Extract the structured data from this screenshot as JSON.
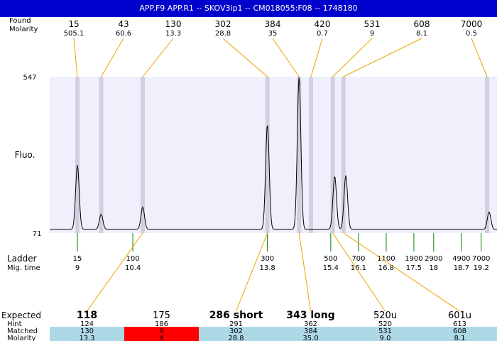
{
  "title": "APP.F9  APP.R1 -- SKOV3ip1 -- CM018055:F08 -- 1748180",
  "labels": {
    "found": "Found",
    "molarity": "Molarity",
    "fluo": "Fluo.",
    "ladder": "Ladder",
    "mig_time": "Mig. time",
    "expected": "Expected",
    "hint": "Hint",
    "matched": "Matched",
    "molarity_row": "Molarity"
  },
  "colors": {
    "title_bar": "#0000cc",
    "plot_bg": "#f0f0fc",
    "band": "#d0d0e0",
    "connector": "#f0a000",
    "ladder_tick": "#008000",
    "table_bg": "#add8e6",
    "table_missing": "#ff0000"
  },
  "chart_data": {
    "type": "line",
    "ylabel": "Fluo.",
    "ylim": [
      71,
      547
    ],
    "y_ticks": [
      71,
      547
    ],
    "xlim": [
      8.3,
      19.6
    ],
    "peaks": [
      {
        "mig_time": 9.0,
        "height": 278
      },
      {
        "mig_time": 9.6,
        "height": 128
      },
      {
        "mig_time": 10.65,
        "height": 150
      },
      {
        "mig_time": 13.8,
        "height": 402
      },
      {
        "mig_time": 14.6,
        "height": 547
      },
      {
        "mig_time": 15.5,
        "height": 244
      },
      {
        "mig_time": 15.78,
        "height": 246
      },
      {
        "mig_time": 19.4,
        "height": 135
      }
    ],
    "baseline": 82,
    "found": [
      {
        "size": "15",
        "molarity": "505.1",
        "mig_time": 9.0
      },
      {
        "size": "43",
        "molarity": "60.6",
        "mig_time": 9.6
      },
      {
        "size": "130",
        "molarity": "13.3",
        "mig_time": 10.65
      },
      {
        "size": "302",
        "molarity": "28.8",
        "mig_time": 13.8
      },
      {
        "size": "384",
        "molarity": "35",
        "mig_time": 14.6
      },
      {
        "size": "420",
        "molarity": "0.7",
        "mig_time": 14.9
      },
      {
        "size": "531",
        "molarity": "9",
        "mig_time": 15.45
      },
      {
        "size": "608",
        "molarity": "8.1",
        "mig_time": 15.72
      },
      {
        "size": "7000",
        "molarity": "0.5",
        "mig_time": 19.35
      }
    ],
    "ladder": [
      {
        "size": "15",
        "mig_time": "9"
      },
      {
        "size": "100",
        "mig_time": "10.4"
      },
      {
        "size": "300",
        "mig_time": "13.8"
      },
      {
        "size": "500",
        "mig_time": "15.4"
      },
      {
        "size": "700",
        "mig_time": "16.1"
      },
      {
        "size": "1100",
        "mig_time": "16.8"
      },
      {
        "size": "1900",
        "mig_time": "17.5"
      },
      {
        "size": "2900",
        "mig_time": "18"
      },
      {
        "size": "4900",
        "mig_time": "18.7"
      },
      {
        "size": "7000",
        "mig_time": "19.2"
      }
    ],
    "expected": [
      {
        "label": "118",
        "bold": true,
        "hint": "124",
        "matched": "130",
        "molarity": "13.3",
        "found_index": 2
      },
      {
        "label": "175",
        "bold": false,
        "hint": "186",
        "matched": "X",
        "molarity": "X",
        "found_index": null
      },
      {
        "label": "286 short",
        "bold": true,
        "hint": "291",
        "matched": "302",
        "molarity": "28.8",
        "found_index": 3
      },
      {
        "label": "343 long",
        "bold": true,
        "hint": "362",
        "matched": "384",
        "molarity": "35.0",
        "found_index": 4
      },
      {
        "label": "520u",
        "bold": false,
        "hint": "520",
        "matched": "531",
        "molarity": "9.0",
        "found_index": 6
      },
      {
        "label": "601u",
        "bold": false,
        "hint": "613",
        "matched": "608",
        "molarity": "8.1",
        "found_index": 7
      }
    ]
  }
}
